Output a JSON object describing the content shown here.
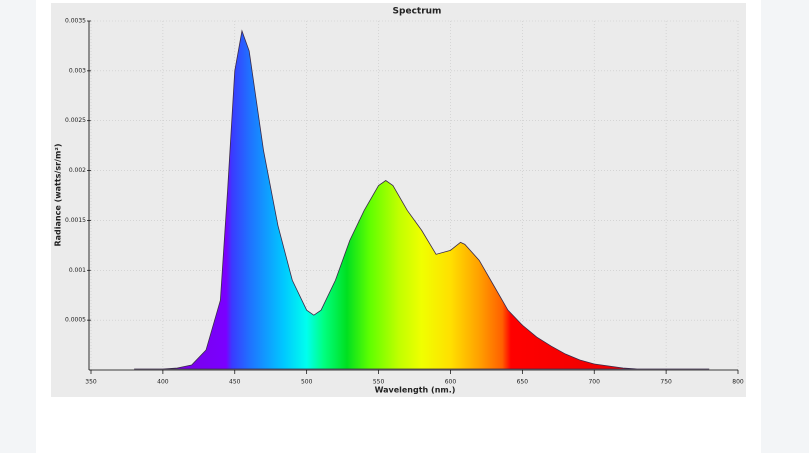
{
  "chart_data": {
    "type": "area",
    "title": "Spectrum",
    "x_label": "Wavelength (nm.)",
    "y_label": "Radiance (watts/sr/m²)",
    "x": [
      380,
      400,
      410,
      420,
      430,
      440,
      445,
      450,
      455,
      460,
      465,
      470,
      480,
      490,
      500,
      505,
      510,
      520,
      530,
      540,
      550,
      555,
      560,
      570,
      580,
      590,
      600,
      607,
      610,
      620,
      630,
      640,
      650,
      660,
      670,
      680,
      690,
      700,
      710,
      720,
      730,
      740,
      760,
      780
    ],
    "values": [
      1e-05,
      1e-05,
      2e-05,
      5e-05,
      0.0002,
      0.0007,
      0.0018,
      0.003,
      0.0034,
      0.0032,
      0.0027,
      0.0022,
      0.00145,
      0.0009,
      0.0006,
      0.00055,
      0.0006,
      0.0009,
      0.0013,
      0.0016,
      0.00185,
      0.0019,
      0.00185,
      0.0016,
      0.0014,
      0.00116,
      0.0012,
      0.00128,
      0.00126,
      0.0011,
      0.00085,
      0.0006,
      0.00045,
      0.00033,
      0.00024,
      0.00016,
      0.0001,
      6e-05,
      4e-05,
      2e-05,
      1e-05,
      1e-05,
      1e-05,
      1e-05
    ],
    "line_color": "#3a2a4a",
    "xlim": [
      350,
      800
    ],
    "xticks": [
      350,
      400,
      450,
      500,
      550,
      600,
      650,
      700,
      750,
      800
    ],
    "ylim": [
      0,
      0.0035
    ],
    "yticks": [
      0.0005,
      0.001,
      0.0015,
      0.002,
      0.0025,
      0.003,
      0.0035
    ],
    "grid": true
  }
}
